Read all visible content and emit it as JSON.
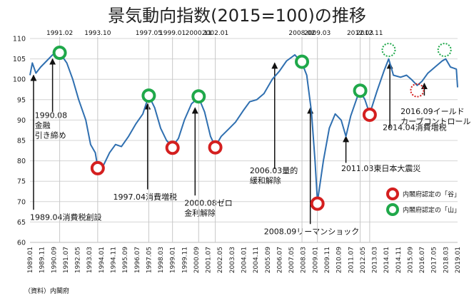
{
  "chart_data": {
    "type": "line",
    "title": "景気動向指数(2015=100)の推移",
    "source": "（資料）内閣府",
    "ylim": [
      60,
      110
    ],
    "y_ticks": [
      60,
      65,
      70,
      75,
      80,
      85,
      90,
      95,
      100,
      105,
      110
    ],
    "x_range": [
      "1989.01",
      "2019.01"
    ],
    "x_ticks": [
      "1989.01",
      "1989.11",
      "1990.09",
      "1991.07",
      "1992.05",
      "1993.03",
      "1994.01",
      "1994.11",
      "1995.09",
      "1996.07",
      "1997.05",
      "1998.03",
      "1999.01",
      "1999.11",
      "2000.09",
      "2001.07",
      "2002.05",
      "2003.03",
      "2004.01",
      "2004.11",
      "2005.09",
      "2006.07",
      "2007.05",
      "2008.03",
      "2009.01",
      "2009.11",
      "2010.09",
      "2011.07",
      "2012.05",
      "2013.03",
      "2014.01",
      "2014.11",
      "2015.09",
      "2016.07",
      "2017.05",
      "2018.03",
      "2019.01"
    ],
    "grid": "horizontal",
    "line_color": "#2f6fb0",
    "series": [
      {
        "values": [
          [
            "1989.01",
            101
          ],
          [
            "1989.03",
            104
          ],
          [
            "1989.06",
            101.5
          ],
          [
            "1989.10",
            103
          ],
          [
            "1990.03",
            104.5
          ],
          [
            "1990.08",
            106
          ],
          [
            "1991.02",
            106.5
          ],
          [
            "1991.08",
            104
          ],
          [
            "1992.01",
            100
          ],
          [
            "1992.06",
            95
          ],
          [
            "1992.12",
            90
          ],
          [
            "1993.04",
            84
          ],
          [
            "1993.08",
            82
          ],
          [
            "1993.10",
            78.5
          ],
          [
            "1994.03",
            79
          ],
          [
            "1994.08",
            82
          ],
          [
            "1995.01",
            84
          ],
          [
            "1995.06",
            83.5
          ],
          [
            "1995.12",
            86
          ],
          [
            "1996.06",
            89
          ],
          [
            "1996.12",
            91.5
          ],
          [
            "1997.05",
            96
          ],
          [
            "1997.10",
            93
          ],
          [
            "1998.03",
            88
          ],
          [
            "1998.08",
            85
          ],
          [
            "1999.01",
            83.5
          ],
          [
            "1999.06",
            85.5
          ],
          [
            "1999.11",
            90
          ],
          [
            "2000.05",
            94
          ],
          [
            "2000.11",
            95.5
          ],
          [
            "2001.04",
            92
          ],
          [
            "2001.09",
            86
          ],
          [
            "2002.01",
            83.5
          ],
          [
            "2002.06",
            86
          ],
          [
            "2003.01",
            88
          ],
          [
            "2003.06",
            89.5
          ],
          [
            "2004.01",
            92.5
          ],
          [
            "2004.06",
            94.5
          ],
          [
            "2004.12",
            95
          ],
          [
            "2005.06",
            96.5
          ],
          [
            "2006.01",
            100
          ],
          [
            "2006.07",
            102
          ],
          [
            "2007.01",
            104.5
          ],
          [
            "2007.08",
            106
          ],
          [
            "2008.02",
            104
          ],
          [
            "2008.06",
            101
          ],
          [
            "2008.10",
            92
          ],
          [
            "2009.01",
            80
          ],
          [
            "2009.03",
            70
          ],
          [
            "2009.08",
            80
          ],
          [
            "2010.01",
            88
          ],
          [
            "2010.06",
            91.5
          ],
          [
            "2010.11",
            90
          ],
          [
            "2011.03",
            86
          ],
          [
            "2011.07",
            91
          ],
          [
            "2012.01",
            96
          ],
          [
            "2012.03",
            97
          ],
          [
            "2012.07",
            95
          ],
          [
            "2012.11",
            91.5
          ],
          [
            "2013.05",
            97
          ],
          [
            "2013.11",
            102
          ],
          [
            "2014.03",
            105
          ],
          [
            "2014.07",
            101
          ],
          [
            "2015.01",
            100.5
          ],
          [
            "2015.06",
            101
          ],
          [
            "2015.10",
            100
          ],
          [
            "2016.03",
            98.5
          ],
          [
            "2016.07",
            99.5
          ],
          [
            "2016.12",
            101.5
          ],
          [
            "2017.06",
            103
          ],
          [
            "2017.12",
            104.5
          ],
          [
            "2018.03",
            105
          ],
          [
            "2018.07",
            103
          ],
          [
            "2018.12",
            102.5
          ],
          [
            "2019.01",
            98
          ]
        ]
      }
    ],
    "peak_labels": [
      {
        "x": "1991.02",
        "label": "1991.02"
      },
      {
        "x": "1993.10",
        "label": "1993.10"
      },
      {
        "x": "1997.05",
        "label": "1997.05"
      },
      {
        "x": "1999.01",
        "label": "1999.01"
      },
      {
        "x": "2000.11",
        "label": "2000.11"
      },
      {
        "x": "2002.01",
        "label": "2002.01"
      },
      {
        "x": "2008.02",
        "label": "2008.02"
      },
      {
        "x": "2009.03",
        "label": "2009.03"
      },
      {
        "x": "2012.03",
        "label": "2012.03"
      },
      {
        "x": "2012.11",
        "label": "2012.11"
      }
    ],
    "markers": [
      {
        "x": "1991.02",
        "y": 106.5,
        "kind": "yama"
      },
      {
        "x": "1993.10",
        "y": 78.2,
        "kind": "tani"
      },
      {
        "x": "1997.05",
        "y": 96,
        "kind": "yama"
      },
      {
        "x": "1999.01",
        "y": 83.2,
        "kind": "tani"
      },
      {
        "x": "2000.11",
        "y": 95.8,
        "kind": "yama"
      },
      {
        "x": "2002.01",
        "y": 83.3,
        "kind": "tani"
      },
      {
        "x": "2008.02",
        "y": 104.3,
        "kind": "yama"
      },
      {
        "x": "2009.03",
        "y": 69.5,
        "kind": "tani"
      },
      {
        "x": "2012.03",
        "y": 97.2,
        "kind": "yama"
      },
      {
        "x": "2012.11",
        "y": 91.3,
        "kind": "tani"
      },
      {
        "x": "2014.03",
        "y": 107.2,
        "kind": "yama",
        "dotted": true
      },
      {
        "x": "2016.03",
        "y": 97.3,
        "kind": "tani",
        "dotted": true
      },
      {
        "x": "2018.02",
        "y": 107.2,
        "kind": "yama",
        "dotted": true
      }
    ],
    "annotations": [
      {
        "lines": [
          "1990.08",
          "金融",
          "引き締め"
        ],
        "x": "1990.08",
        "y": 92,
        "target_y": 105,
        "text_x": "1989.05",
        "text_y": 90.5
      },
      {
        "lines": [
          "1989.04消費税創設"
        ],
        "x": "1989.04",
        "y": 68,
        "target_y": 101,
        "text_x": "1989.01",
        "text_y": 65.5
      },
      {
        "lines": [
          "1997.04消費増税"
        ],
        "x": "1997.04",
        "y": 73,
        "target_y": 94,
        "text_x": "1994.11",
        "text_y": 70.5
      },
      {
        "lines": [
          "2000.08ゼロ",
          "金利解除"
        ],
        "x": "2000.08",
        "y": 71.5,
        "target_y": 93,
        "text_x": "1999.11",
        "text_y": 69
      },
      {
        "lines": [
          "2006.03量的",
          "緩和解除"
        ],
        "x": "2006.03",
        "y": 78,
        "target_y": 104,
        "text_x": "2004.06",
        "text_y": 77
      },
      {
        "lines": [
          "2008.09リーマンショック"
        ],
        "x": "2008.09",
        "y": 64.5,
        "target_y": 93,
        "text_x": "2005.06",
        "text_y": 62
      },
      {
        "lines": [
          "2011.03東日本大震災"
        ],
        "x": "2011.03",
        "y": 79.5,
        "target_y": 86,
        "text_x": "2010.11",
        "text_y": 77.5
      },
      {
        "lines": [
          "2014.04消費増税"
        ],
        "x": "2014.04",
        "y": 88,
        "target_y": 104,
        "text_x": "2013.10",
        "text_y": 87.5
      },
      {
        "lines": [
          "2016.09イールド",
          "カーブコントロール"
        ],
        "x": "2016.09",
        "y": 96,
        "target_y": 99,
        "text_x": "2015.01",
        "text_y": 91.5
      }
    ],
    "legend": {
      "placement": "bottom-right",
      "entries": [
        {
          "kind": "tani",
          "label": "内閣府認定の「谷」",
          "color": "#d41f1f"
        },
        {
          "kind": "yama",
          "label": "内閣府認定の「山」",
          "color": "#1fa84a"
        }
      ]
    }
  }
}
